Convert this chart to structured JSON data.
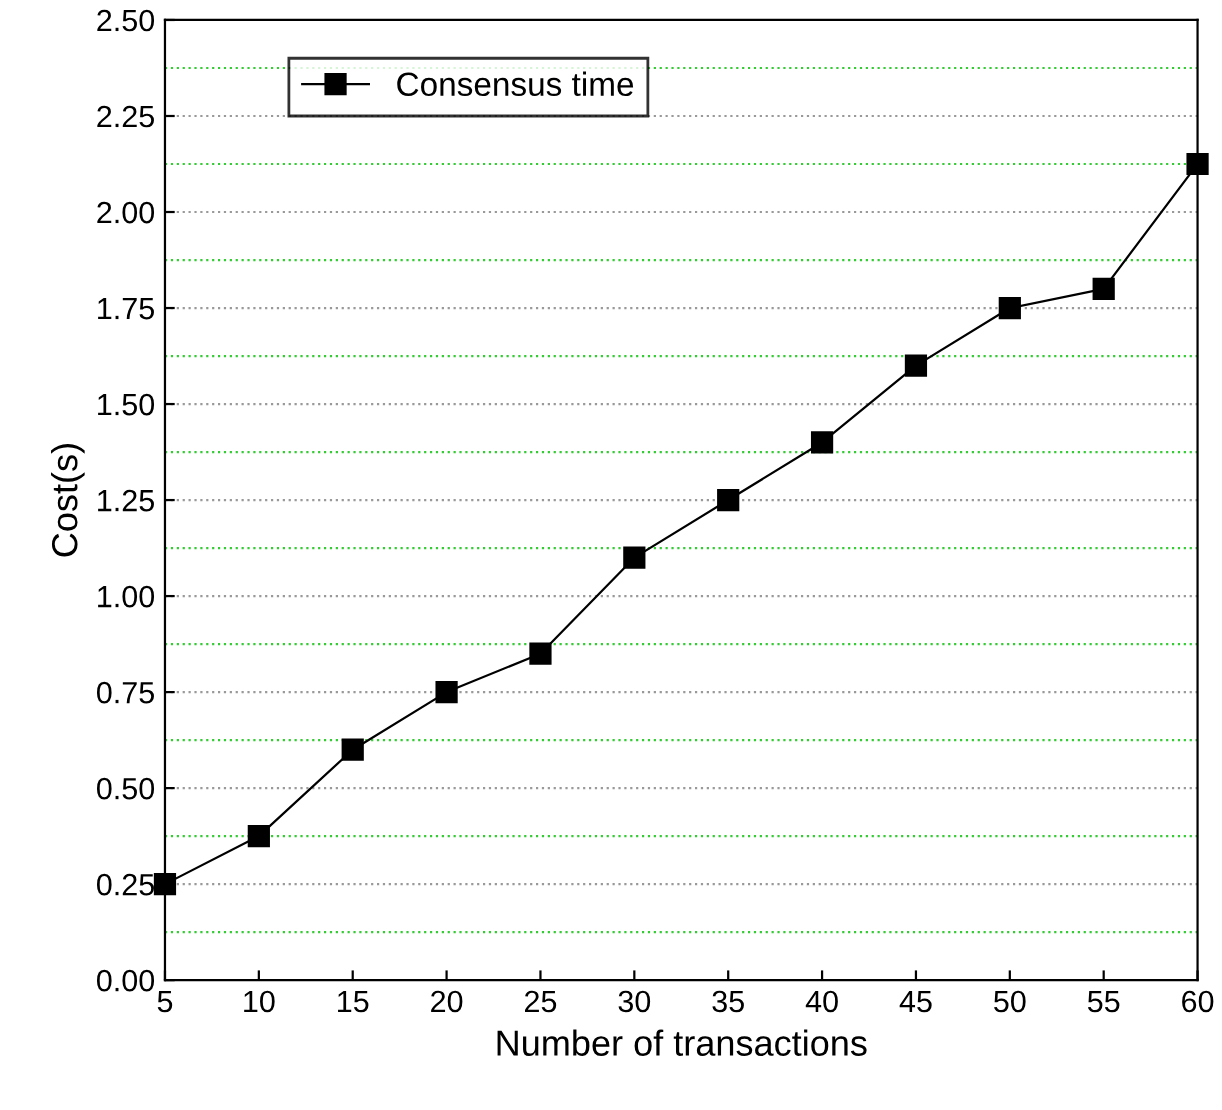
{
  "chart_data": {
    "type": "line",
    "xlabel": "Number of transactions",
    "ylabel": "Cost(s)",
    "x": [
      5,
      10,
      15,
      20,
      25,
      30,
      35,
      40,
      45,
      50,
      55,
      60
    ],
    "series": [
      {
        "name": "Consensus time",
        "color": "#000000",
        "values": [
          0.25,
          0.375,
          0.6,
          0.75,
          0.85,
          1.1,
          1.25,
          1.4,
          1.6,
          1.75,
          1.8,
          2.125
        ]
      }
    ],
    "xlim": [
      5,
      60
    ],
    "xticks": [
      5,
      10,
      15,
      20,
      25,
      30,
      35,
      40,
      45,
      50,
      55,
      60
    ],
    "ylim": [
      0,
      2.5
    ],
    "yticks": [
      {
        "value": 0,
        "label": "0.00"
      },
      {
        "value": 0.25,
        "label": "0.25"
      },
      {
        "value": 0.5,
        "label": "0.50"
      },
      {
        "value": 0.75,
        "label": "0.75"
      },
      {
        "value": 1.0,
        "label": "1.00"
      },
      {
        "value": 1.25,
        "label": "1.25"
      },
      {
        "value": 1.5,
        "label": "1.50"
      },
      {
        "value": 1.75,
        "label": "1.75"
      },
      {
        "value": 2.0,
        "label": "2.00"
      },
      {
        "value": 2.25,
        "label": "2.25"
      },
      {
        "value": 2.5,
        "label": "2.50"
      }
    ],
    "ref_lines": [
      {
        "axis": "y",
        "value": 0.125,
        "color": "#33cc33",
        "line_style": "dotted"
      },
      {
        "axis": "y",
        "value": 0.375,
        "color": "#33cc33",
        "line_style": "dotted"
      },
      {
        "axis": "y",
        "value": 0.625,
        "color": "#33cc33",
        "line_style": "dotted"
      },
      {
        "axis": "y",
        "value": 0.875,
        "color": "#33cc33",
        "line_style": "dotted"
      },
      {
        "axis": "y",
        "value": 1.125,
        "color": "#33cc33",
        "line_style": "dotted"
      },
      {
        "axis": "y",
        "value": 1.375,
        "color": "#33cc33",
        "line_style": "dotted"
      },
      {
        "axis": "y",
        "value": 1.625,
        "color": "#33cc33",
        "line_style": "dotted"
      },
      {
        "axis": "y",
        "value": 1.875,
        "color": "#33cc33",
        "line_style": "dotted"
      },
      {
        "axis": "y",
        "value": 2.125,
        "color": "#33cc33",
        "line_style": "dotted"
      },
      {
        "axis": "y",
        "value": 2.375,
        "color": "#33cc33",
        "line_style": "dotted"
      }
    ],
    "grid": "y",
    "legend": "top left",
    "marker": "square",
    "line_style": "solid"
  }
}
